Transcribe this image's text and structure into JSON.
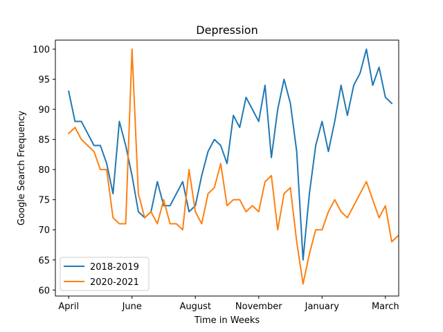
{
  "chart_data": {
    "type": "line",
    "title": "Depression",
    "xlabel": "Time in Weeks",
    "ylabel": "Google Search Frequency",
    "ylim": [
      59,
      101.5
    ],
    "yticks": [
      60,
      65,
      70,
      75,
      80,
      85,
      90,
      95,
      100
    ],
    "xlim": [
      -2.1,
      52.1
    ],
    "xtick_labels": [
      {
        "x": 0,
        "label": "April"
      },
      {
        "x": 10,
        "label": "June"
      },
      {
        "x": 20,
        "label": "August"
      },
      {
        "x": 30,
        "label": "November"
      },
      {
        "x": 40,
        "label": "January"
      },
      {
        "x": 50,
        "label": "March"
      }
    ],
    "grid": false,
    "legend_position": "lower-left",
    "series": [
      {
        "name": "2018-2019",
        "color": "#1f77b4",
        "values": [
          93,
          88,
          88,
          86,
          84,
          84,
          81,
          76,
          88,
          84,
          79,
          73,
          72,
          73,
          78,
          74,
          74,
          76,
          78,
          73,
          74,
          79,
          83,
          85,
          84,
          81,
          89,
          87,
          92,
          90,
          88,
          94,
          82,
          90,
          95,
          91,
          83,
          65,
          76,
          84,
          88,
          83,
          88,
          94,
          89,
          94,
          96,
          100,
          94,
          97,
          92,
          91
        ]
      },
      {
        "name": "2020-2021",
        "color": "#ff7f0e",
        "values": [
          86,
          87,
          85,
          84,
          83,
          80,
          80,
          72,
          71,
          71,
          100,
          76,
          72,
          73,
          71,
          75,
          71,
          71,
          70,
          80,
          73,
          71,
          76,
          77,
          81,
          74,
          75,
          75,
          73,
          74,
          73,
          78,
          79,
          70,
          76,
          77,
          68,
          61,
          66,
          70,
          70,
          73,
          75,
          73,
          72,
          74,
          76,
          78,
          75,
          72,
          74,
          68,
          69
        ]
      }
    ]
  }
}
